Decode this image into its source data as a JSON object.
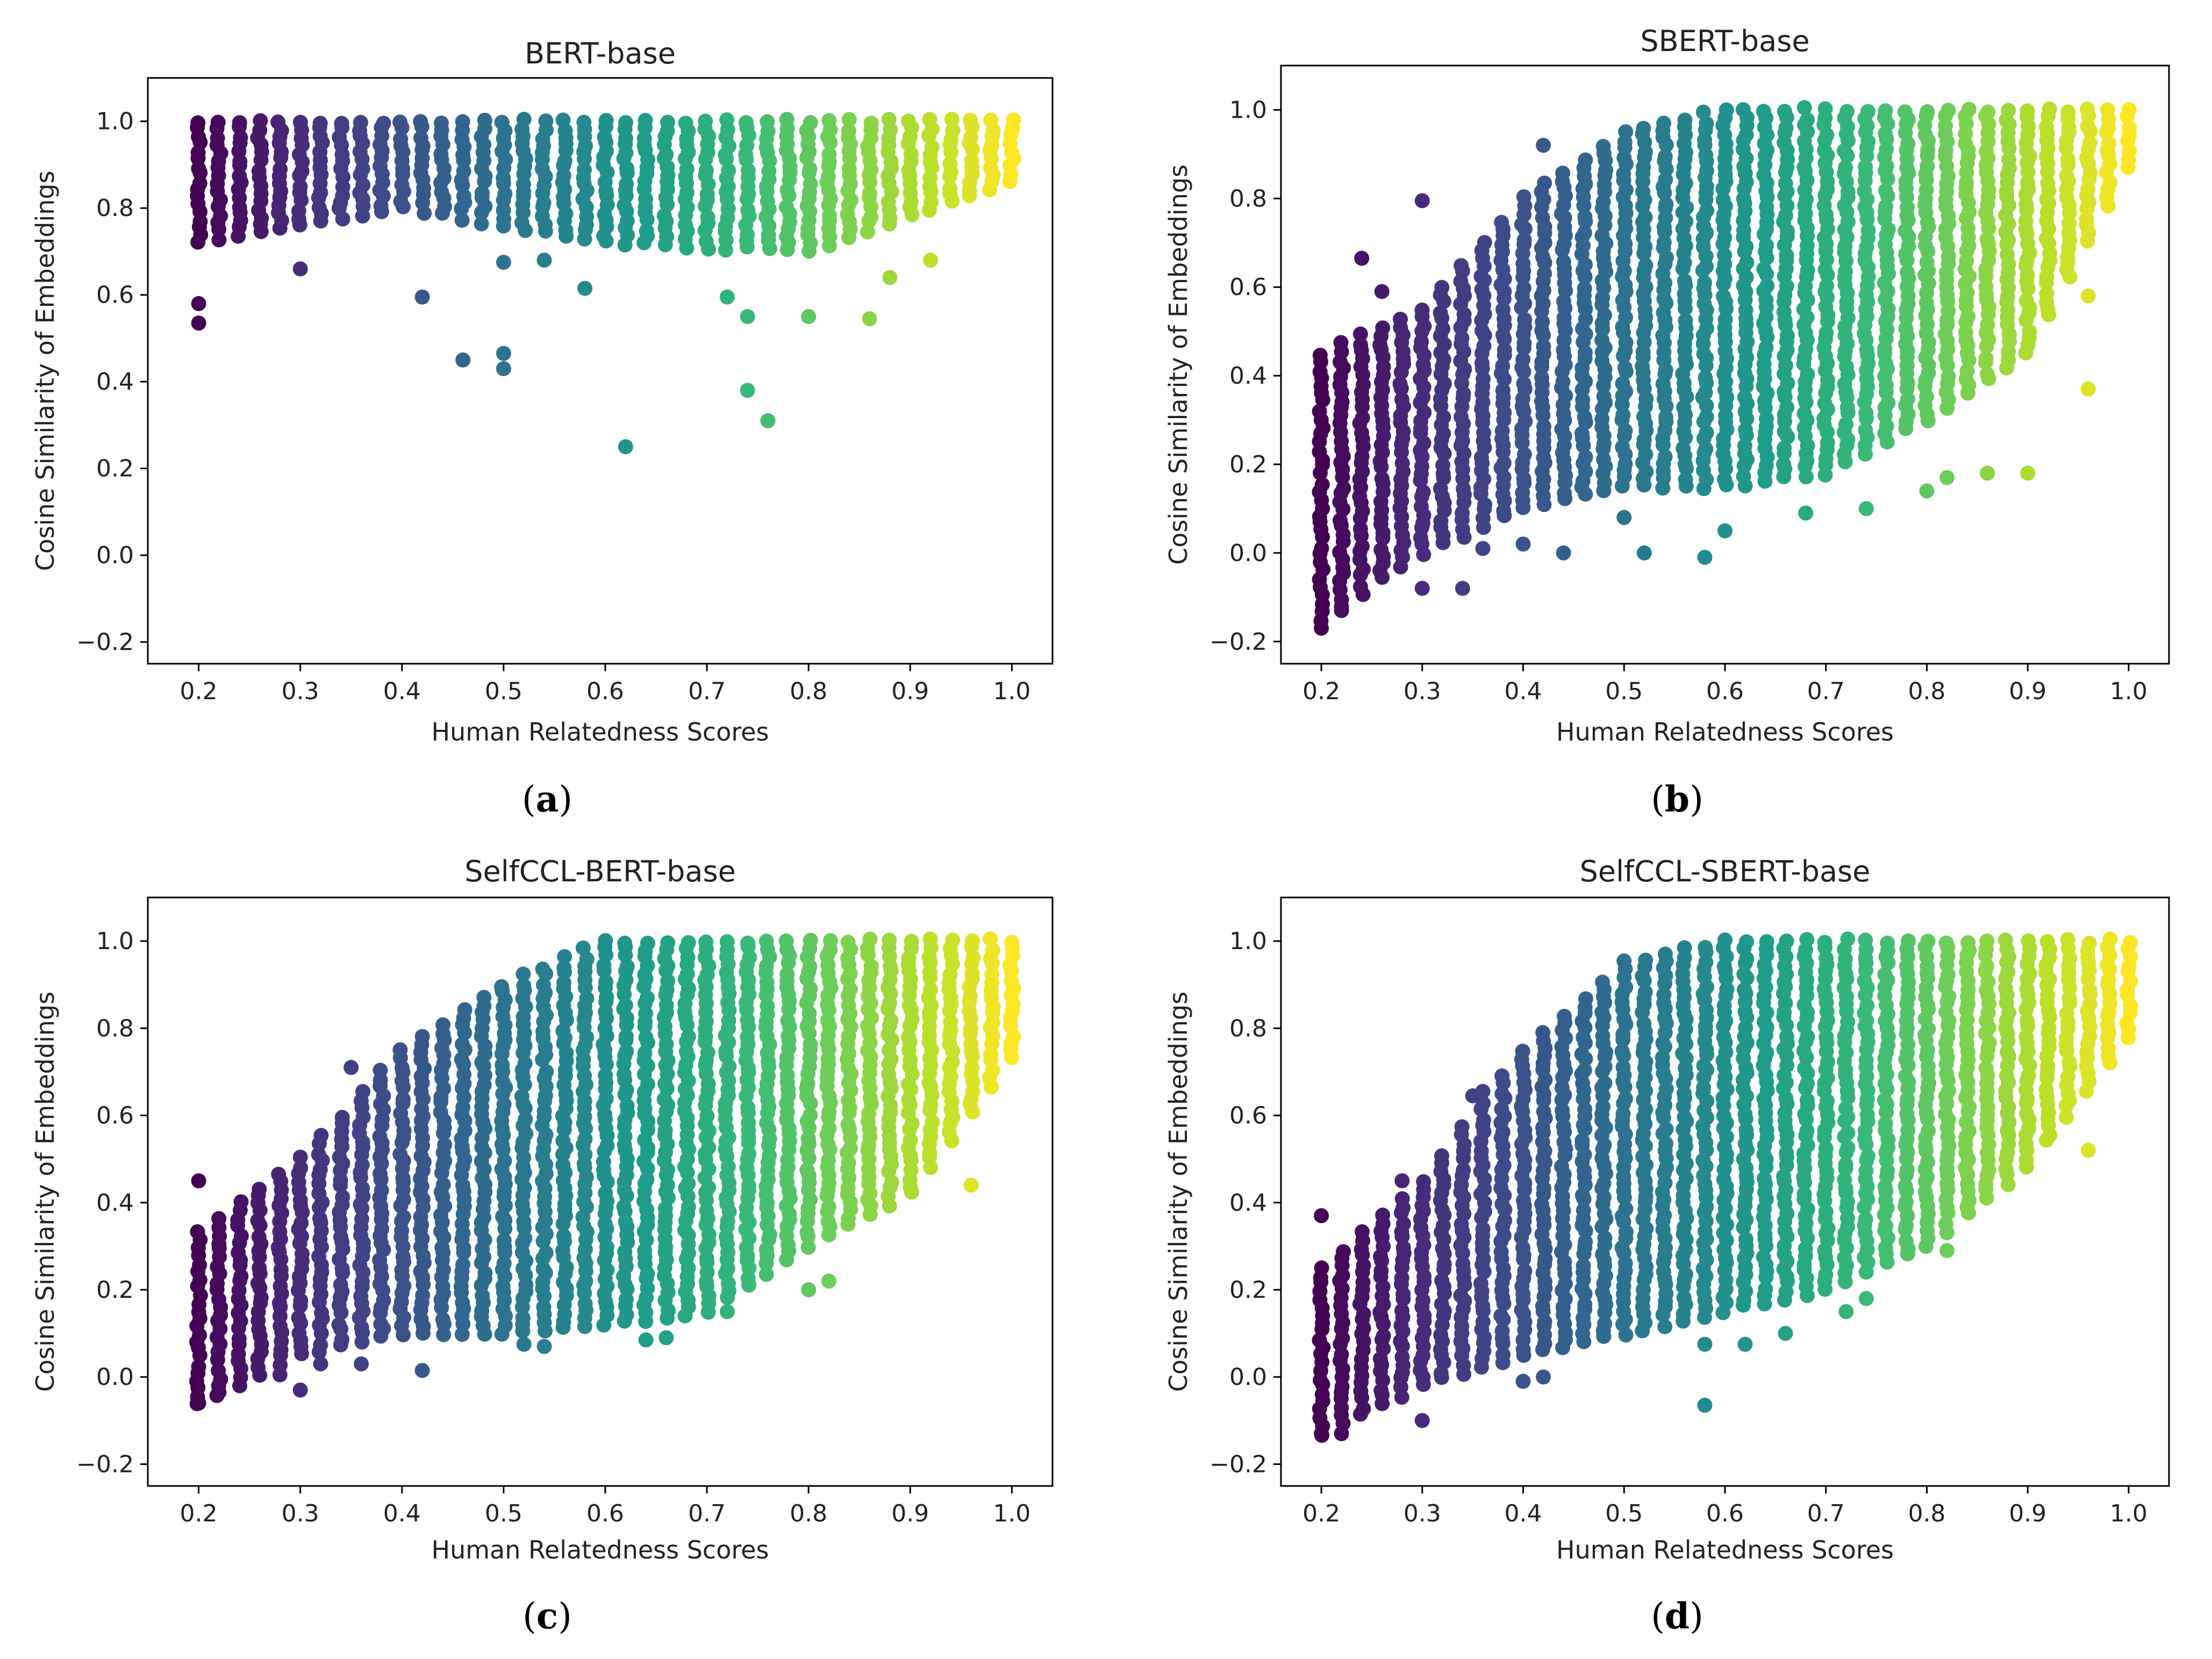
{
  "figure": {
    "colormap": "viridis",
    "colormap_stops": [
      "#440154",
      "#482878",
      "#3e4a89",
      "#31688e",
      "#26828e",
      "#1f9e89",
      "#35b779",
      "#6ece58",
      "#b5de2b",
      "#fde725"
    ],
    "axes_frame_color": "#000000",
    "background_color": "#ffffff"
  },
  "chart_data": [
    {
      "type": "scatter",
      "title": "BERT-base",
      "caption_letter": "a",
      "xlabel": "Human Relatedness Scores",
      "ylabel": "Cosine Similarity of Embeddings",
      "xlim": [
        0.15,
        1.04
      ],
      "ylim": [
        -0.25,
        1.1
      ],
      "xticks": [
        0.2,
        0.3,
        0.4,
        0.5,
        0.6,
        0.7,
        0.8,
        0.9,
        1.0
      ],
      "xtick_labels": [
        "0.2",
        "0.3",
        "0.4",
        "0.5",
        "0.6",
        "0.7",
        "0.8",
        "0.9",
        "1.0"
      ],
      "yticks": [
        -0.2,
        0.0,
        0.2,
        0.4,
        0.6,
        0.8,
        1.0
      ],
      "ytick_labels": [
        "−0.2",
        "0.0",
        "0.2",
        "0.4",
        "0.6",
        "0.8",
        "1.0"
      ],
      "grid": false,
      "color_encodes": "x",
      "x_range": [
        0.2,
        1.0
      ],
      "x_step": 0.02,
      "column_band": [
        [
          0.2,
          0.72,
          1.0
        ],
        [
          0.4,
          0.8,
          1.0
        ],
        [
          0.6,
          0.72,
          1.0
        ],
        [
          0.8,
          0.7,
          1.0
        ],
        [
          1.0,
          0.86,
          1.0
        ]
      ],
      "outliers": [
        {
          "x": 0.2,
          "y": 0.58
        },
        {
          "x": 0.2,
          "y": 0.535
        },
        {
          "x": 0.3,
          "y": 0.66
        },
        {
          "x": 0.42,
          "y": 0.595
        },
        {
          "x": 0.46,
          "y": 0.45
        },
        {
          "x": 0.5,
          "y": 0.465
        },
        {
          "x": 0.5,
          "y": 0.43
        },
        {
          "x": 0.5,
          "y": 0.675
        },
        {
          "x": 0.54,
          "y": 0.68
        },
        {
          "x": 0.58,
          "y": 0.615
        },
        {
          "x": 0.62,
          "y": 0.25
        },
        {
          "x": 0.72,
          "y": 0.595
        },
        {
          "x": 0.74,
          "y": 0.55
        },
        {
          "x": 0.74,
          "y": 0.38
        },
        {
          "x": 0.76,
          "y": 0.31
        },
        {
          "x": 0.8,
          "y": 0.55
        },
        {
          "x": 0.86,
          "y": 0.545
        },
        {
          "x": 0.88,
          "y": 0.64
        },
        {
          "x": 0.92,
          "y": 0.68
        }
      ]
    },
    {
      "type": "scatter",
      "title": "SBERT-base",
      "caption_letter": "b",
      "xlabel": "Human Relatedness Scores",
      "ylabel": "Cosine Similarity of Embeddings",
      "xlim": [
        0.16,
        1.04
      ],
      "ylim": [
        -0.25,
        1.1
      ],
      "xticks": [
        0.2,
        0.3,
        0.4,
        0.5,
        0.6,
        0.7,
        0.8,
        0.9,
        1.0
      ],
      "xtick_labels": [
        "0.2",
        "0.3",
        "0.4",
        "0.5",
        "0.6",
        "0.7",
        "0.8",
        "0.9",
        "1.0"
      ],
      "yticks": [
        -0.2,
        0.0,
        0.2,
        0.4,
        0.6,
        0.8,
        1.0
      ],
      "ytick_labels": [
        "−0.2",
        "0.0",
        "0.2",
        "0.4",
        "0.6",
        "0.8",
        "1.0"
      ],
      "grid": false,
      "color_encodes": "x",
      "x_range": [
        0.2,
        1.0
      ],
      "x_step": 0.02,
      "column_band": [
        [
          0.2,
          -0.15,
          0.45
        ],
        [
          0.3,
          0.0,
          0.55
        ],
        [
          0.4,
          0.1,
          0.8
        ],
        [
          0.5,
          0.15,
          0.95
        ],
        [
          0.6,
          0.15,
          1.0
        ],
        [
          0.7,
          0.18,
          1.0
        ],
        [
          0.8,
          0.3,
          1.0
        ],
        [
          0.9,
          0.45,
          1.0
        ],
        [
          1.0,
          0.87,
          1.0
        ]
      ],
      "outliers": [
        {
          "x": 0.2,
          "y": -0.17
        },
        {
          "x": 0.22,
          "y": -0.13
        },
        {
          "x": 0.24,
          "y": 0.665
        },
        {
          "x": 0.26,
          "y": 0.59
        },
        {
          "x": 0.3,
          "y": 0.795
        },
        {
          "x": 0.3,
          "y": -0.08
        },
        {
          "x": 0.34,
          "y": -0.08
        },
        {
          "x": 0.36,
          "y": 0.01
        },
        {
          "x": 0.4,
          "y": 0.02
        },
        {
          "x": 0.42,
          "y": 0.92
        },
        {
          "x": 0.44,
          "y": 0.0
        },
        {
          "x": 0.5,
          "y": 0.08
        },
        {
          "x": 0.52,
          "y": 0.0
        },
        {
          "x": 0.58,
          "y": -0.01
        },
        {
          "x": 0.6,
          "y": 0.05
        },
        {
          "x": 0.68,
          "y": 0.09
        },
        {
          "x": 0.74,
          "y": 0.1
        },
        {
          "x": 0.8,
          "y": 0.14
        },
        {
          "x": 0.82,
          "y": 0.17
        },
        {
          "x": 0.86,
          "y": 0.18
        },
        {
          "x": 0.9,
          "y": 0.18
        },
        {
          "x": 0.96,
          "y": 0.58
        },
        {
          "x": 0.96,
          "y": 0.37
        }
      ]
    },
    {
      "type": "scatter",
      "title": "SelfCCL-BERT-base",
      "caption_letter": "c",
      "xlabel": "Human Relatedness Scores",
      "ylabel": "Cosine Similarity of Embeddings",
      "xlim": [
        0.15,
        1.04
      ],
      "ylim": [
        -0.25,
        1.1
      ],
      "xticks": [
        0.2,
        0.3,
        0.4,
        0.5,
        0.6,
        0.7,
        0.8,
        0.9,
        1.0
      ],
      "xtick_labels": [
        "0.2",
        "0.3",
        "0.4",
        "0.5",
        "0.6",
        "0.7",
        "0.8",
        "0.9",
        "1.0"
      ],
      "yticks": [
        -0.2,
        0.0,
        0.2,
        0.4,
        0.6,
        0.8,
        1.0
      ],
      "ytick_labels": [
        "−0.2",
        "0.0",
        "0.2",
        "0.4",
        "0.6",
        "0.8",
        "1.0"
      ],
      "grid": false,
      "color_encodes": "x",
      "x_range": [
        0.2,
        1.0
      ],
      "x_step": 0.02,
      "column_band": [
        [
          0.2,
          -0.06,
          0.33
        ],
        [
          0.3,
          0.05,
          0.5
        ],
        [
          0.4,
          0.1,
          0.75
        ],
        [
          0.5,
          0.1,
          0.9
        ],
        [
          0.6,
          0.12,
          1.0
        ],
        [
          0.7,
          0.15,
          1.0
        ],
        [
          0.8,
          0.3,
          1.0
        ],
        [
          0.9,
          0.42,
          1.0
        ],
        [
          1.0,
          0.73,
          1.0
        ]
      ],
      "outliers": [
        {
          "x": 0.2,
          "y": 0.45
        },
        {
          "x": 0.2,
          "y": -0.06
        },
        {
          "x": 0.22,
          "y": -0.035
        },
        {
          "x": 0.28,
          "y": 0.005
        },
        {
          "x": 0.3,
          "y": -0.03
        },
        {
          "x": 0.32,
          "y": 0.03
        },
        {
          "x": 0.35,
          "y": 0.71
        },
        {
          "x": 0.36,
          "y": 0.03
        },
        {
          "x": 0.42,
          "y": 0.015
        },
        {
          "x": 0.52,
          "y": 0.075
        },
        {
          "x": 0.54,
          "y": 0.07
        },
        {
          "x": 0.64,
          "y": 0.085
        },
        {
          "x": 0.66,
          "y": 0.09
        },
        {
          "x": 0.72,
          "y": 0.15
        },
        {
          "x": 0.8,
          "y": 0.2
        },
        {
          "x": 0.82,
          "y": 0.22
        },
        {
          "x": 0.96,
          "y": 0.44
        }
      ]
    },
    {
      "type": "scatter",
      "title": "SelfCCL-SBERT-base",
      "caption_letter": "d",
      "xlabel": "Human Relatedness Scores",
      "ylabel": "Cosine Similarity of Embeddings",
      "xlim": [
        0.16,
        1.04
      ],
      "ylim": [
        -0.25,
        1.1
      ],
      "xticks": [
        0.2,
        0.3,
        0.4,
        0.5,
        0.6,
        0.7,
        0.8,
        0.9,
        1.0
      ],
      "xtick_labels": [
        "0.2",
        "0.3",
        "0.4",
        "0.5",
        "0.6",
        "0.7",
        "0.8",
        "0.9",
        "1.0"
      ],
      "yticks": [
        -0.2,
        0.0,
        0.2,
        0.4,
        0.6,
        0.8,
        1.0
      ],
      "ytick_labels": [
        "−0.2",
        "0.0",
        "0.2",
        "0.4",
        "0.6",
        "0.8",
        "1.0"
      ],
      "grid": false,
      "color_encodes": "x",
      "x_range": [
        0.2,
        1.0
      ],
      "x_step": 0.02,
      "column_band": [
        [
          0.2,
          -0.13,
          0.25
        ],
        [
          0.3,
          -0.02,
          0.45
        ],
        [
          0.4,
          0.05,
          0.75
        ],
        [
          0.5,
          0.1,
          0.95
        ],
        [
          0.6,
          0.15,
          1.0
        ],
        [
          0.7,
          0.2,
          1.0
        ],
        [
          0.8,
          0.3,
          1.0
        ],
        [
          0.9,
          0.48,
          1.0
        ],
        [
          1.0,
          0.78,
          1.0
        ]
      ],
      "outliers": [
        {
          "x": 0.2,
          "y": 0.37
        },
        {
          "x": 0.2,
          "y": -0.13
        },
        {
          "x": 0.22,
          "y": -0.13
        },
        {
          "x": 0.28,
          "y": 0.45
        },
        {
          "x": 0.3,
          "y": -0.1
        },
        {
          "x": 0.35,
          "y": 0.645
        },
        {
          "x": 0.36,
          "y": 0.655
        },
        {
          "x": 0.4,
          "y": -0.01
        },
        {
          "x": 0.42,
          "y": 0.0
        },
        {
          "x": 0.58,
          "y": 0.075
        },
        {
          "x": 0.58,
          "y": -0.065
        },
        {
          "x": 0.62,
          "y": 0.075
        },
        {
          "x": 0.66,
          "y": 0.1
        },
        {
          "x": 0.72,
          "y": 0.15
        },
        {
          "x": 0.74,
          "y": 0.18
        },
        {
          "x": 0.82,
          "y": 0.29
        },
        {
          "x": 0.96,
          "y": 0.52
        }
      ]
    }
  ]
}
